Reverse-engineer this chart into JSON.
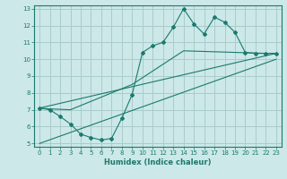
{
  "title": "",
  "xlabel": "Humidex (Indice chaleur)",
  "bg_color": "#cce8e8",
  "grid_color": "#aacccc",
  "line_color": "#1a7a6e",
  "xlim": [
    -0.5,
    23.5
  ],
  "ylim": [
    4.8,
    13.2
  ],
  "xticks": [
    0,
    1,
    2,
    3,
    4,
    5,
    6,
    7,
    8,
    9,
    10,
    11,
    12,
    13,
    14,
    15,
    16,
    17,
    18,
    19,
    20,
    21,
    22,
    23
  ],
  "yticks": [
    5,
    6,
    7,
    8,
    9,
    10,
    11,
    12,
    13
  ],
  "line1_x": [
    0,
    1,
    2,
    3,
    4,
    5,
    6,
    7,
    8,
    9,
    10,
    11,
    12,
    13,
    14,
    15,
    16,
    17,
    18,
    19,
    20,
    21,
    22,
    23
  ],
  "line1_y": [
    7.1,
    7.0,
    6.6,
    6.15,
    5.55,
    5.35,
    5.2,
    5.3,
    6.5,
    7.9,
    10.4,
    10.8,
    11.0,
    11.9,
    13.0,
    12.1,
    11.5,
    12.5,
    12.2,
    11.6,
    10.4,
    10.35,
    10.35,
    10.35
  ],
  "line2_x": [
    0,
    1,
    3,
    9,
    14,
    22,
    23
  ],
  "line2_y": [
    7.1,
    7.05,
    7.0,
    8.5,
    10.5,
    10.35,
    10.35
  ],
  "line3_x": [
    0,
    23
  ],
  "line3_y": [
    7.1,
    10.35
  ],
  "line4_x": [
    0,
    23
  ],
  "line4_y": [
    5.0,
    10.0
  ]
}
